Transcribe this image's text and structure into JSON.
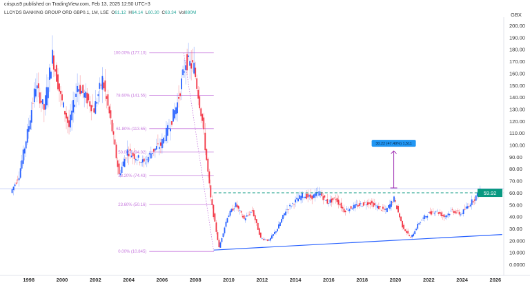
{
  "header": {
    "published": "crispus9 published on TradingView.com, Feb 13, 2025 12:50 UTC+3",
    "symbol": "LLOYDS BANKING GROUP ORD GBP0.1, 1M, LSE",
    "ohlc": {
      "o_label": "O",
      "o": "61.12",
      "h_label": "H",
      "h": "64.14",
      "l_label": "L",
      "l": "60.30",
      "c_label": "C",
      "c": "63.34",
      "vol_label": "Vol",
      "vol": "880M"
    }
  },
  "colors": {
    "up": "#2962ff",
    "down": "#f23645",
    "fib": "#c678dd",
    "level": "#089981",
    "trend": "#2962ff",
    "measure": "#9c27b0",
    "measure_box": "#2196f3"
  },
  "chart_data": {
    "type": "candlestick",
    "currency": "GBX",
    "interval": "1M",
    "ylim": [
      0,
      200
    ],
    "xlim": [
      1997,
      2026.6
    ],
    "y_ticks": [
      "200.00",
      "190.00",
      "180.00",
      "170.00",
      "160.00",
      "150.00",
      "140.00",
      "130.00",
      "120.00",
      "110.00",
      "100.00",
      "90.00",
      "80.00",
      "70.00",
      "60.00",
      "50.00",
      "40.00",
      "30.00",
      "20.000",
      "10.000",
      "0.0000"
    ],
    "y_tick_values": [
      200,
      190,
      180,
      170,
      160,
      150,
      140,
      130,
      120,
      110,
      100,
      90,
      80,
      70,
      60,
      50,
      40,
      30,
      20,
      10,
      0
    ],
    "x_ticks": [
      "1998",
      "2000",
      "2002",
      "2004",
      "2006",
      "2008",
      "2010",
      "2012",
      "2014",
      "2016",
      "2018",
      "2020",
      "2022",
      "2024",
      "2026"
    ],
    "start_price": 60,
    "semiannual_closes": {
      "start": 1997,
      "values": [
        75,
        110,
        150,
        130,
        175,
        140,
        115,
        150,
        140,
        130,
        155,
        120,
        75,
        95,
        90,
        85,
        95,
        100,
        115,
        135,
        170,
        165,
        120,
        55,
        14,
        40,
        50,
        38,
        45,
        22,
        20,
        30,
        45,
        52,
        58,
        56,
        60,
        52,
        55,
        45,
        48,
        50,
        52,
        48,
        45,
        55,
        32,
        22,
        35,
        42,
        45,
        40,
        45,
        42,
        50,
        58,
        63
      ]
    },
    "fibonacci": [
      {
        "label": "100.00% (177.10)",
        "price": 177.1
      },
      {
        "label": "78.60% (141.55)",
        "price": 141.55
      },
      {
        "label": "61.80% (113.65)",
        "price": 113.65
      },
      {
        "label": "50.00% (94.02)",
        "price": 94.02
      },
      {
        "label": "38.20% (74.43)",
        "price": 74.43
      },
      {
        "label": "23.60% (50.16)",
        "price": 50.16
      },
      {
        "label": "0.00% (10.845)",
        "price": 10.845
      }
    ],
    "fib_range": [
      2007.3,
      2009.1
    ],
    "resistance": {
      "price": 59.92,
      "label": "59.92"
    },
    "price_line": 63.34,
    "trendline": [
      {
        "x": 2009.1,
        "y": 12
      },
      {
        "x": 2026.4,
        "y": 25
      }
    ],
    "measurement": {
      "label": "30.22 (47.49%) 1,511",
      "x": 2019.9,
      "from": 64,
      "to": 95
    }
  }
}
